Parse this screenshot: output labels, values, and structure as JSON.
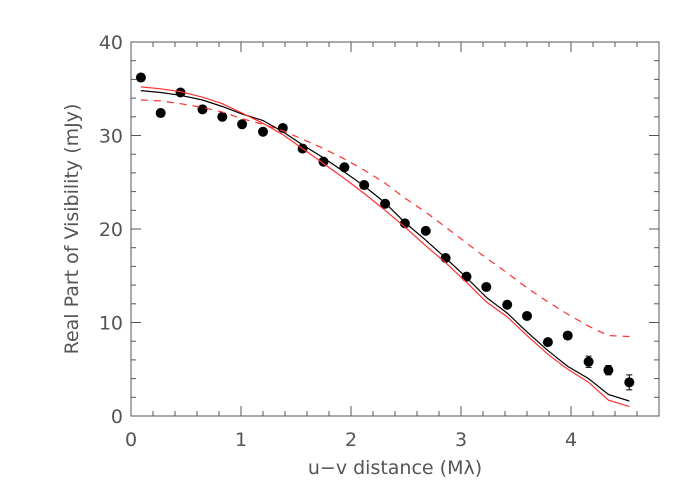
{
  "chart_data": {
    "type": "scatter",
    "title": "",
    "xlabel": "u−v distance (Mλ)",
    "ylabel": "Real Part of Visibility (mJy)",
    "xlim": [
      0,
      4.8
    ],
    "ylim": [
      0,
      40
    ],
    "xticks": [
      "0",
      "1",
      "2",
      "3",
      "4"
    ],
    "yticks": [
      "0",
      "10",
      "20",
      "30",
      "40"
    ],
    "grid": false,
    "x": [
      0.09,
      0.27,
      0.45,
      0.65,
      0.83,
      1.01,
      1.2,
      1.38,
      1.56,
      1.75,
      1.94,
      2.12,
      2.31,
      2.49,
      2.68,
      2.86,
      3.05,
      3.23,
      3.42,
      3.6,
      3.79,
      3.97,
      4.16,
      4.34,
      4.53
    ],
    "series": [
      {
        "style": "points",
        "color": "#000000",
        "values": [
          36.2,
          32.4,
          34.6,
          32.8,
          32.0,
          31.2,
          30.4,
          30.8,
          28.6,
          27.2,
          26.6,
          24.7,
          22.7,
          20.6,
          19.8,
          16.9,
          14.9,
          13.8,
          11.9,
          10.7,
          7.9,
          8.6,
          5.8,
          4.9,
          3.6
        ],
        "errors": [
          0,
          0,
          0,
          0,
          0,
          0,
          0,
          0,
          0,
          0,
          0,
          0,
          0,
          0,
          0,
          0,
          0,
          0,
          0,
          0,
          0,
          0,
          0.6,
          0.5,
          0.8
        ]
      },
      {
        "style": "solid",
        "color": "#000000",
        "values": [
          34.8,
          34.6,
          34.3,
          33.8,
          33.1,
          32.3,
          31.6,
          30.4,
          29.0,
          27.6,
          26.1,
          24.6,
          22.8,
          20.7,
          18.8,
          16.9,
          14.8,
          12.7,
          11.0,
          9.0,
          7.0,
          5.3,
          4.0,
          2.3,
          1.6
        ]
      },
      {
        "style": "solid",
        "color": "#ff3030",
        "values": [
          35.2,
          35.0,
          34.7,
          34.1,
          33.4,
          32.4,
          31.3,
          30.1,
          28.6,
          27.0,
          25.4,
          23.8,
          22.0,
          20.2,
          18.2,
          16.4,
          14.3,
          12.2,
          10.6,
          8.6,
          6.6,
          5.0,
          3.6,
          1.7,
          1.0
        ]
      },
      {
        "style": "dashed",
        "color": "#ff3030",
        "values": [
          33.8,
          33.7,
          33.4,
          33.0,
          32.5,
          31.8,
          31.2,
          30.5,
          29.6,
          28.6,
          27.5,
          26.3,
          24.9,
          23.3,
          21.8,
          20.2,
          18.5,
          16.9,
          15.3,
          13.7,
          12.2,
          10.9,
          9.6,
          8.6,
          8.5
        ]
      }
    ]
  }
}
